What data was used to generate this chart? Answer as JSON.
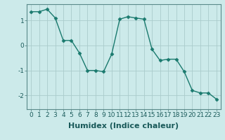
{
  "x": [
    0,
    1,
    2,
    3,
    4,
    5,
    6,
    7,
    8,
    9,
    10,
    11,
    12,
    13,
    14,
    15,
    16,
    17,
    18,
    19,
    20,
    21,
    22,
    23
  ],
  "y": [
    1.35,
    1.35,
    1.45,
    1.1,
    0.2,
    0.2,
    -0.3,
    -1.0,
    -1.0,
    -1.05,
    -0.35,
    1.05,
    1.15,
    1.1,
    1.05,
    -0.15,
    -0.6,
    -0.55,
    -0.55,
    -1.05,
    -1.8,
    -1.9,
    -1.9,
    -2.15
  ],
  "line_color": "#1a7a6e",
  "marker": "D",
  "marker_size": 2.5,
  "bg_color": "#cceaea",
  "grid_color": "#aacccc",
  "xlabel": "Humidex (Indice chaleur)",
  "xlabel_fontsize": 8,
  "ytick_labels": [
    "",
    "-2",
    "",
    "-1",
    "",
    "0",
    "",
    "1",
    ""
  ],
  "ytick_values": [
    -2.5,
    -2.0,
    -1.5,
    -1.0,
    -0.5,
    0.0,
    0.5,
    1.0,
    1.5
  ],
  "yticks_shown": [
    -2,
    -1,
    0,
    1
  ],
  "xticks": [
    0,
    1,
    2,
    3,
    4,
    5,
    6,
    7,
    8,
    9,
    10,
    11,
    12,
    13,
    14,
    15,
    16,
    17,
    18,
    19,
    20,
    21,
    22,
    23
  ],
  "ylim": [
    -2.55,
    1.65
  ],
  "xlim": [
    -0.5,
    23.5
  ],
  "tick_fontsize": 6.5,
  "linewidth": 1.0,
  "spine_color": "#5a8a8a"
}
